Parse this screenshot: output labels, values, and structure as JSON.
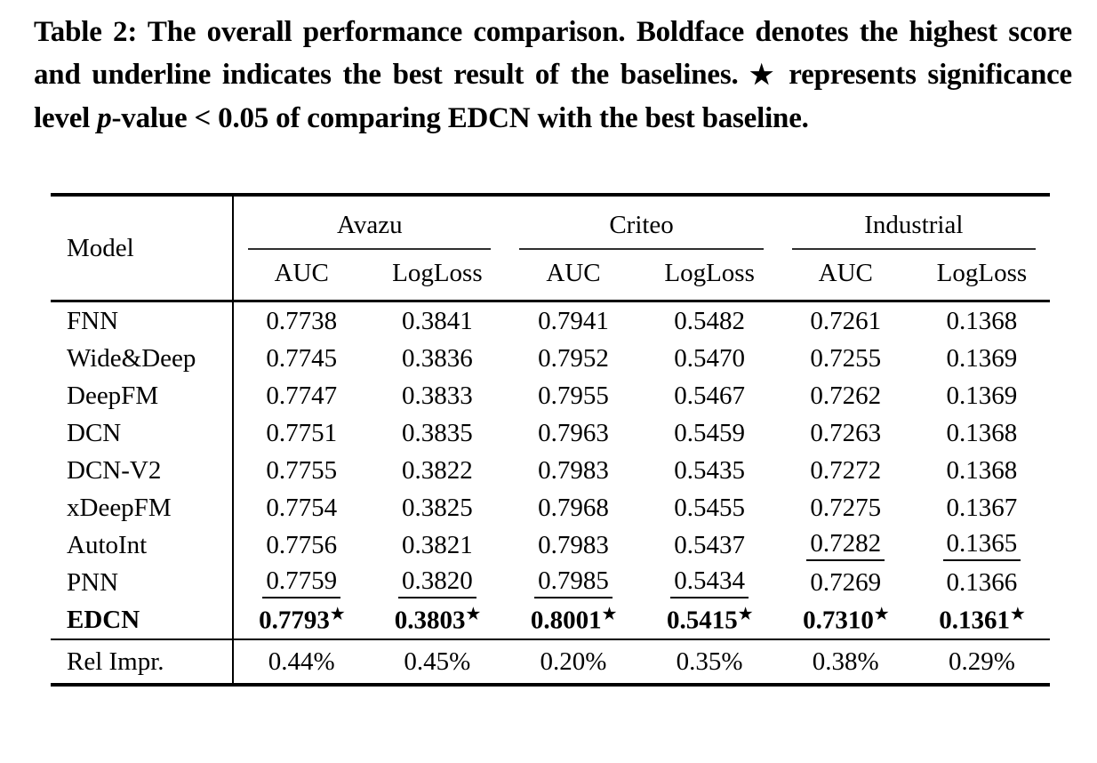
{
  "caption": {
    "segments": [
      {
        "text": "Table 2: The overall performance comparison. Boldface denotes the highest score and underline indicates the best result of the baselines. "
      },
      {
        "text": "★",
        "star": true
      },
      {
        "text": " represents significance level "
      },
      {
        "text": "p",
        "italic": true
      },
      {
        "text": "-value < 0.05 of comparing EDCN with the best baseline."
      }
    ]
  },
  "table": {
    "model_header": "Model",
    "star_symbol": "★",
    "groups": [
      {
        "label": "Avazu",
        "metrics": [
          "AUC",
          "LogLoss"
        ]
      },
      {
        "label": "Criteo",
        "metrics": [
          "AUC",
          "LogLoss"
        ]
      },
      {
        "label": "Industrial",
        "metrics": [
          "AUC",
          "LogLoss"
        ]
      }
    ],
    "rows": [
      {
        "model": "FNN",
        "cells": [
          {
            "v": "0.7738"
          },
          {
            "v": "0.3841"
          },
          {
            "v": "0.7941"
          },
          {
            "v": "0.5482"
          },
          {
            "v": "0.7261"
          },
          {
            "v": "0.1368"
          }
        ]
      },
      {
        "model": "Wide&Deep",
        "cells": [
          {
            "v": "0.7745"
          },
          {
            "v": "0.3836"
          },
          {
            "v": "0.7952"
          },
          {
            "v": "0.5470"
          },
          {
            "v": "0.7255"
          },
          {
            "v": "0.1369"
          }
        ]
      },
      {
        "model": "DeepFM",
        "cells": [
          {
            "v": "0.7747"
          },
          {
            "v": "0.3833"
          },
          {
            "v": "0.7955"
          },
          {
            "v": "0.5467"
          },
          {
            "v": "0.7262"
          },
          {
            "v": "0.1369"
          }
        ]
      },
      {
        "model": "DCN",
        "cells": [
          {
            "v": "0.7751"
          },
          {
            "v": "0.3835"
          },
          {
            "v": "0.7963"
          },
          {
            "v": "0.5459"
          },
          {
            "v": "0.7263"
          },
          {
            "v": "0.1368"
          }
        ]
      },
      {
        "model": "DCN-V2",
        "cells": [
          {
            "v": "0.7755"
          },
          {
            "v": "0.3822"
          },
          {
            "v": "0.7983"
          },
          {
            "v": "0.5435"
          },
          {
            "v": "0.7272"
          },
          {
            "v": "0.1368"
          }
        ]
      },
      {
        "model": "xDeepFM",
        "cells": [
          {
            "v": "0.7754"
          },
          {
            "v": "0.3825"
          },
          {
            "v": "0.7968"
          },
          {
            "v": "0.5455"
          },
          {
            "v": "0.7275"
          },
          {
            "v": "0.1367"
          }
        ]
      },
      {
        "model": "AutoInt",
        "cells": [
          {
            "v": "0.7756"
          },
          {
            "v": "0.3821"
          },
          {
            "v": "0.7983"
          },
          {
            "v": "0.5437"
          },
          {
            "v": "0.7282",
            "u": true
          },
          {
            "v": "0.1365",
            "u": true
          }
        ]
      },
      {
        "model": "PNN",
        "cells": [
          {
            "v": "0.7759",
            "u": true
          },
          {
            "v": "0.3820",
            "u": true
          },
          {
            "v": "0.7985",
            "u": true
          },
          {
            "v": "0.5434",
            "u": true
          },
          {
            "v": "0.7269"
          },
          {
            "v": "0.1366"
          }
        ]
      },
      {
        "model": "EDCN",
        "bold": true,
        "cells": [
          {
            "v": "0.7793",
            "b": true,
            "s": true
          },
          {
            "v": "0.3803",
            "b": true,
            "s": true
          },
          {
            "v": "0.8001",
            "b": true,
            "s": true
          },
          {
            "v": "0.5415",
            "b": true,
            "s": true
          },
          {
            "v": "0.7310",
            "b": true,
            "s": true
          },
          {
            "v": "0.1361",
            "b": true,
            "s": true
          }
        ]
      }
    ],
    "footer": {
      "label": "Rel Impr.",
      "values": [
        "0.44%",
        "0.45%",
        "0.20%",
        "0.35%",
        "0.38%",
        "0.29%"
      ]
    }
  },
  "colors": {
    "background": "#ffffff",
    "text": "#000000",
    "rule": "#000000",
    "cmidrule": "#2e2e2e"
  }
}
